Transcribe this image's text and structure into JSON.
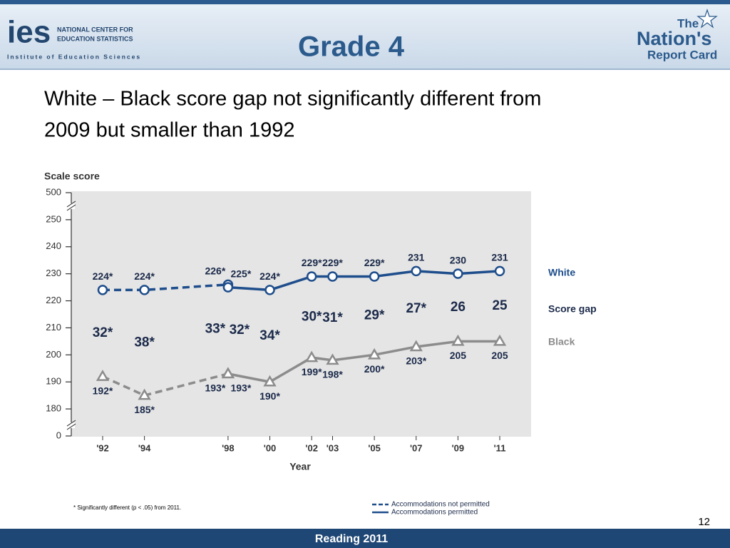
{
  "header": {
    "logo": "ies",
    "org_line1": "NATIONAL CENTER FOR",
    "org_line2": "EDUCATION STATISTICS",
    "org_sub": "Institute of Education Sciences",
    "grade": "Grade 4",
    "brand_1": "The",
    "brand_2": "Nation's",
    "brand_3": "Report Card"
  },
  "slide_title_1": "White – Black score gap not significantly different from",
  "slide_title_2": "2009 but smaller than 1992",
  "chart_data": {
    "type": "line",
    "ylabel": "Scale score",
    "xlabel": "Year",
    "ylim": [
      0,
      500
    ],
    "yticks": [
      0,
      180,
      190,
      200,
      210,
      220,
      230,
      240,
      250,
      500
    ],
    "axis_break": true,
    "xlim": [
      1990.5,
      2012.5
    ],
    "xticks": [
      {
        "value": 1992,
        "label": "'92"
      },
      {
        "value": 1994,
        "label": "'94"
      },
      {
        "value": 1998,
        "label": "'98"
      },
      {
        "value": 2000,
        "label": "'00"
      },
      {
        "value": 2002,
        "label": "'02"
      },
      {
        "value": 2003,
        "label": "'03"
      },
      {
        "value": 2005,
        "label": "'05"
      },
      {
        "value": 2007,
        "label": "'07"
      },
      {
        "value": 2009,
        "label": "'09"
      },
      {
        "value": 2011,
        "label": "'11"
      }
    ],
    "series": [
      {
        "name": "White",
        "color": "#1f4e8c",
        "marker": "circle",
        "label_side": "above",
        "segments": [
          {
            "dashed": true,
            "x": [
              1992,
              1994,
              1998
            ],
            "values": [
              224,
              224,
              226
            ],
            "value_labels": [
              "224*",
              "224*",
              "226*"
            ]
          },
          {
            "dashed": false,
            "x": [
              1998,
              2000,
              2002,
              2003,
              2005,
              2007,
              2009,
              2011
            ],
            "values": [
              225,
              224,
              229,
              229,
              229,
              231,
              230,
              231
            ],
            "value_labels": [
              "225*",
              "224*",
              "229*",
              "229*",
              "229*",
              "231",
              "230",
              "231"
            ]
          }
        ]
      },
      {
        "name": "Black",
        "color": "#8c8c8c",
        "marker": "triangle",
        "label_side": "below",
        "segments": [
          {
            "dashed": true,
            "x": [
              1992,
              1994,
              1998
            ],
            "values": [
              192,
              185,
              193
            ],
            "value_labels": [
              "192*",
              "185*",
              "193*"
            ]
          },
          {
            "dashed": false,
            "x": [
              1998,
              2000,
              2002,
              2003,
              2005,
              2007,
              2009,
              2011
            ],
            "values": [
              193,
              190,
              199,
              198,
              200,
              203,
              205,
              205
            ],
            "value_labels": [
              "193*",
              "190*",
              "199*",
              "198*",
              "200*",
              "203*",
              "205",
              "205"
            ]
          }
        ]
      }
    ],
    "gap": {
      "name": "Score gap",
      "color": "#1b2a4a",
      "x": [
        1992,
        1994,
        1998,
        1998,
        2000,
        2002,
        2003,
        2005,
        2007,
        2009,
        2011
      ],
      "values": [
        32,
        38,
        33,
        32,
        34,
        30,
        31,
        29,
        27,
        26,
        25
      ],
      "value_labels": [
        "32*",
        "38*",
        "33*",
        "32*",
        "34*",
        "30*",
        "31*",
        "29*",
        "27*",
        "26",
        "25"
      ]
    },
    "dash_legend": [
      "Accommodations not permitted",
      "Accommodations permitted"
    ]
  },
  "footnote": "* Significantly different (p < .05) from 2011.",
  "page_number": "12",
  "footer": "Reading 2011"
}
